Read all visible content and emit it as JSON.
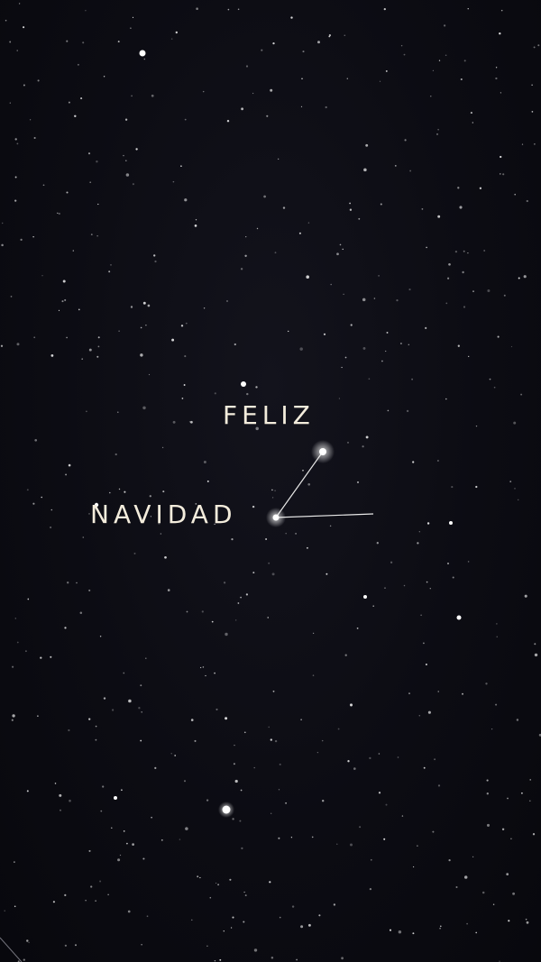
{
  "greeting": {
    "line1": "FELIZ",
    "line2": "NAVIDAD"
  },
  "colors": {
    "sky": "#0b0b12",
    "text": "#f3ecdc",
    "star": "#ffffff",
    "constellation_line": "#e8e8e8"
  }
}
